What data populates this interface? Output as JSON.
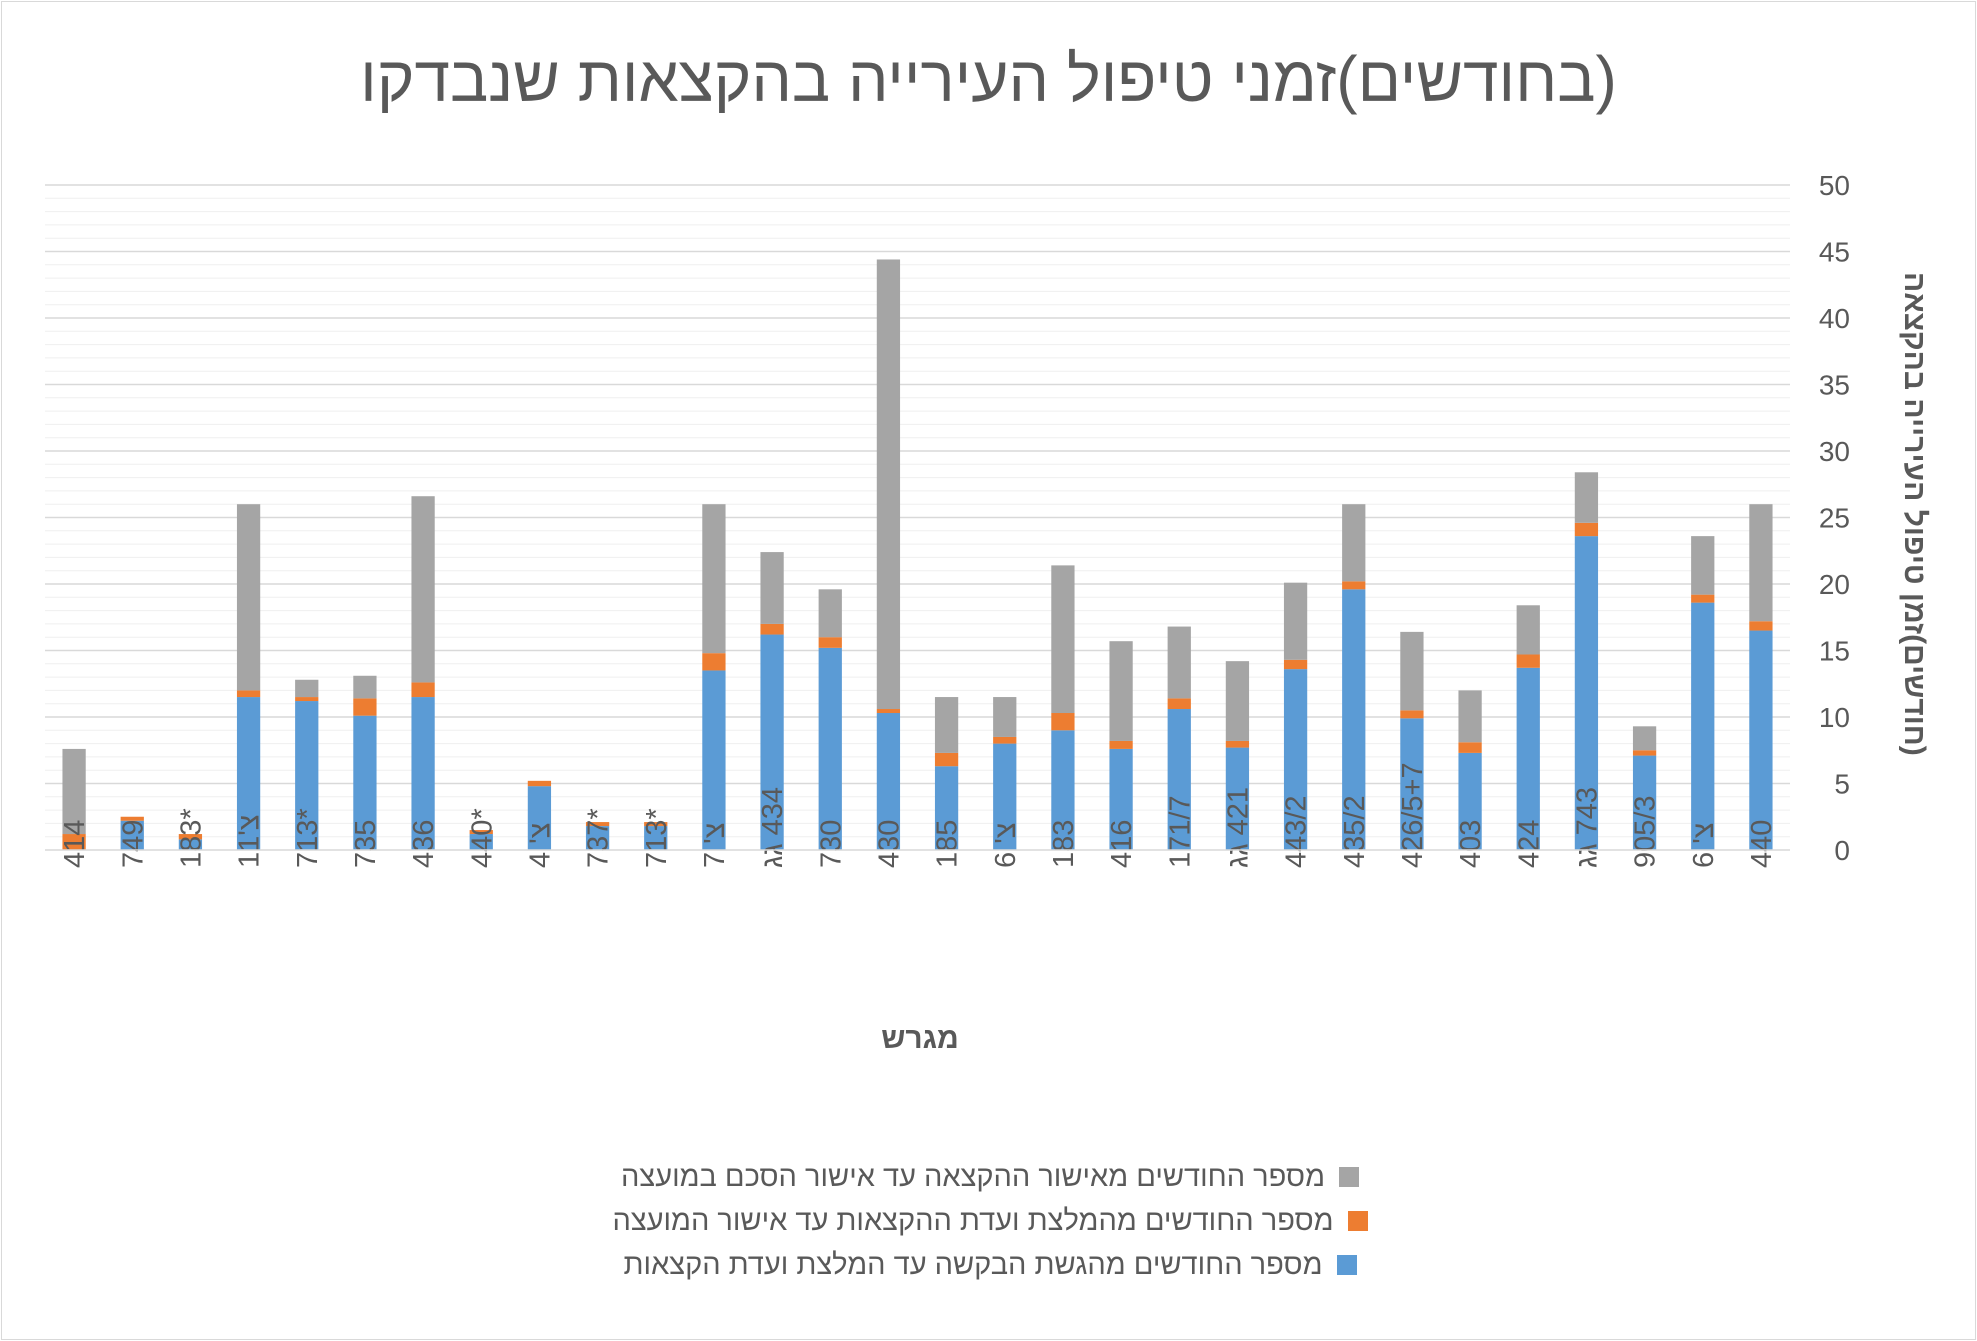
{
  "chart_data": {
    "type": "bar",
    "stacked": true,
    "title": "(בחודשים)זמני טיפול העירייה בהקצאות שנבדקו",
    "xlabel": "מגרש",
    "ylabel": "(חודשים)זמן טיפול העירייה בהקצאה",
    "ylim": [
      0,
      50
    ],
    "y_ticks": [
      0,
      5,
      10,
      15,
      20,
      25,
      30,
      35,
      40,
      45,
      50
    ],
    "y_axis_side": "right",
    "grid": true,
    "legend_position": "bottom",
    "categories": [
      "414",
      "749",
      "183*",
      "צ'11",
      "713*",
      "735",
      "436",
      "440*",
      "צ' 4",
      "737*",
      "713*",
      "צ' 7",
      "434 גג",
      "730",
      "430",
      "185",
      "צ' 6",
      "183",
      "416",
      "171/7",
      "421 גג",
      "443/2",
      "435/2",
      "426/5+7",
      "403",
      "424",
      "743 גג",
      "905/3",
      "צ' 6",
      "440"
    ],
    "series": [
      {
        "name": "מספר החודשים מהגשת הבקשה עד המלצת ועדת הקצאות",
        "color": "#5b9bd5",
        "values": [
          0,
          2.2,
          0.8,
          11.5,
          11.2,
          10.1,
          11.5,
          1.2,
          4.8,
          1.8,
          1.8,
          13.5,
          16.2,
          15.2,
          10.3,
          6.3,
          8.0,
          9.0,
          7.6,
          10.6,
          7.7,
          13.6,
          19.6,
          9.9,
          7.3,
          13.7,
          23.6,
          7.1,
          18.6,
          16.5
        ]
      },
      {
        "name": "מספר החודשים מהמלצת ועדת ההקצאות עד אישור המועצה",
        "color": "#ed7d31",
        "values": [
          1.2,
          0.3,
          0.4,
          0.5,
          0.3,
          1.3,
          1.1,
          0.3,
          0.4,
          0.3,
          0.3,
          1.3,
          0.8,
          0.8,
          0.3,
          1.0,
          0.5,
          1.3,
          0.6,
          0.8,
          0.5,
          0.7,
          0.6,
          0.6,
          0.8,
          1.0,
          1.0,
          0.4,
          0.6,
          0.7
        ]
      },
      {
        "name": "מספר החודשים מאישור ההקצאה עד אישור הסכם במועצה",
        "color": "#a5a5a5",
        "values": [
          6.4,
          0,
          0,
          14.0,
          1.3,
          1.7,
          14.0,
          0,
          0,
          0,
          0,
          11.2,
          5.4,
          3.6,
          33.8,
          4.2,
          3.0,
          11.1,
          7.5,
          5.4,
          6.0,
          5.8,
          5.8,
          5.9,
          3.9,
          3.7,
          3.8,
          1.8,
          4.4,
          8.8
        ]
      }
    ]
  }
}
